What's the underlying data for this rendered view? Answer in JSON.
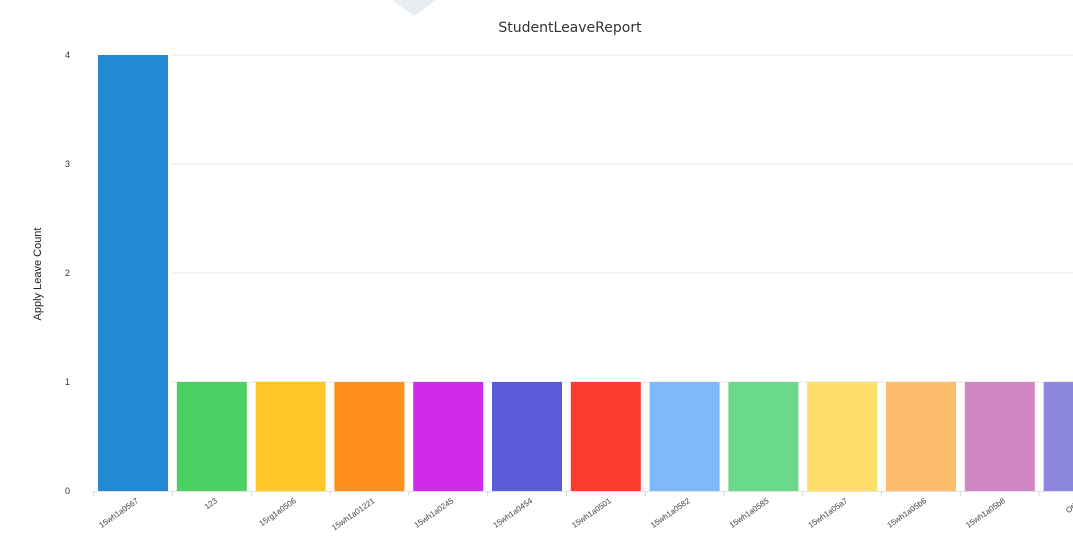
{
  "chart_data": {
    "type": "bar",
    "title": "StudentLeaveReport",
    "ylabel": "Apply Leave Count",
    "xlabel": "",
    "ylim": [
      0,
      4
    ],
    "yticks": [
      0,
      1,
      2,
      3,
      4
    ],
    "grid": true,
    "categories": [
      "15wh1a0567",
      "123",
      "15rg1a0506",
      "15wh1a01221",
      "15wh1a0245",
      "15wh1a0454",
      "15wh1a0501",
      "15wh1a0582",
      "15wh1a0585",
      "15wh1a05a7",
      "15wh1a05b6",
      "15wh1a05b8",
      "Other"
    ],
    "values": [
      4,
      1,
      1,
      1,
      1,
      1,
      1,
      1,
      1,
      1,
      1,
      1,
      1
    ],
    "colors": [
      "#228ad3",
      "#4cd063",
      "#fec627",
      "#fd8f1a",
      "#d02bea",
      "#5a5bd7",
      "#fd3a2e",
      "#80b8fc",
      "#6bd98a",
      "#fedf6a",
      "#fdbd6d",
      "#d088c4",
      "#8d86dd"
    ]
  }
}
